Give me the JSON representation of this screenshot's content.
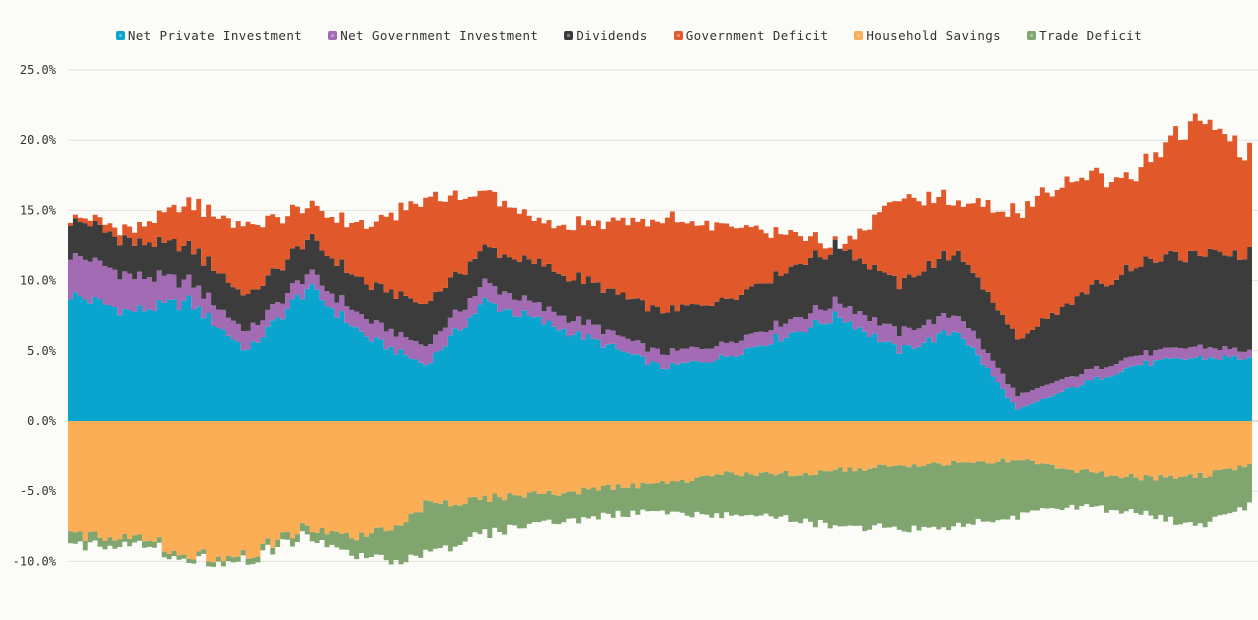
{
  "legend": [
    {
      "label": "Net Private Investment",
      "color": "#0aa5ce"
    },
    {
      "label": "Net Government Investment",
      "color": "#a26bb3"
    },
    {
      "label": "Dividends",
      "color": "#3c3c3c"
    },
    {
      "label": "Government Deficit",
      "color": "#e1582b"
    },
    {
      "label": "Household Savings",
      "color": "#fbae55"
    },
    {
      "label": "Trade Deficit",
      "color": "#80a56f"
    }
  ],
  "chart_data": {
    "type": "area",
    "stacked": true,
    "ylim": [
      -14,
      25
    ],
    "yticks": [
      {
        "value": 25,
        "label": "25.0%"
      },
      {
        "value": 20,
        "label": "20.0%"
      },
      {
        "value": 15,
        "label": "15.0%"
      },
      {
        "value": 10,
        "label": "10.0%"
      },
      {
        "value": 5,
        "label": "5.0%"
      },
      {
        "value": 0,
        "label": "0.0%"
      },
      {
        "value": -5,
        "label": "-5.0%"
      },
      {
        "value": -10,
        "label": "-10.0%"
      }
    ],
    "grid": true,
    "legend_position": "top-center",
    "x": [
      0,
      5,
      10,
      15,
      20,
      25,
      30,
      35,
      40,
      45,
      50,
      55,
      60,
      65,
      70,
      75,
      80,
      85,
      90,
      95,
      100
    ],
    "series": [
      {
        "name": "Net Private Investment",
        "color": "#0aa5ce",
        "values": [
          9.0,
          7.8,
          8.5,
          5.0,
          9.5,
          6.0,
          4.0,
          8.5,
          7.0,
          5.5,
          3.8,
          4.5,
          6.0,
          7.5,
          5.0,
          6.5,
          0.8,
          2.5,
          4.0,
          4.5,
          4.5
        ]
      },
      {
        "name": "Net Government Investment",
        "color": "#a26bb3",
        "values": [
          3.0,
          2.5,
          1.5,
          1.3,
          1.0,
          1.2,
          1.3,
          1.3,
          1.0,
          1.0,
          1.0,
          1.0,
          1.0,
          1.0,
          1.3,
          1.2,
          1.0,
          0.8,
          0.7,
          0.8,
          0.5
        ]
      },
      {
        "name": "Dividends",
        "color": "#3c3c3c",
        "values": [
          2.5,
          2.5,
          2.5,
          2.5,
          2.5,
          2.5,
          3.0,
          2.5,
          3.0,
          3.0,
          3.0,
          3.0,
          3.5,
          4.0,
          3.5,
          4.5,
          4.0,
          5.5,
          6.5,
          6.5,
          7.0
        ]
      },
      {
        "name": "Government Deficit",
        "color": "#e1582b",
        "values": [
          0.2,
          0.8,
          3.0,
          5.0,
          2.3,
          4.0,
          7.5,
          4.0,
          3.0,
          4.5,
          6.5,
          5.5,
          3.0,
          0.0,
          6.0,
          3.5,
          9.0,
          8.5,
          6.5,
          9.5,
          7.0
        ]
      },
      {
        "name": "Household Savings",
        "color": "#fbae55",
        "values": [
          -8.3,
          -8.0,
          -9.5,
          -9.5,
          -7.5,
          -8.5,
          -6.0,
          -5.5,
          -5.2,
          -4.8,
          -4.5,
          -3.8,
          -3.8,
          -3.5,
          -3.2,
          -3.0,
          -2.8,
          -3.5,
          -4.0,
          -4.0,
          -3.0
        ]
      },
      {
        "name": "Trade Deficit",
        "color": "#80a56f",
        "values": [
          0.8,
          0.5,
          0.3,
          0.4,
          0.6,
          1.5,
          3.5,
          2.5,
          2.0,
          2.0,
          2.0,
          3.0,
          3.0,
          4.0,
          4.5,
          4.5,
          4.0,
          2.5,
          2.5,
          3.5,
          2.8
        ]
      }
    ]
  }
}
